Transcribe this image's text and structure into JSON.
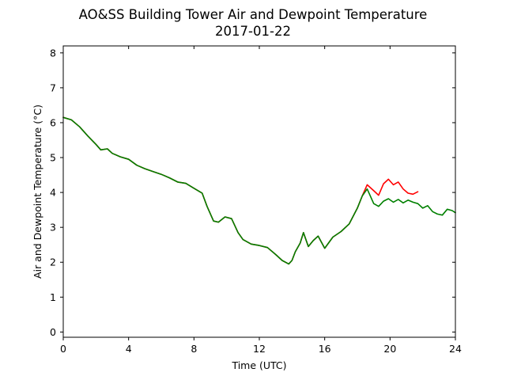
{
  "chart_data": {
    "type": "line",
    "title": "AO&SS Building Tower Air and Dewpoint Temperature",
    "subtitle": "2017-01-22",
    "xlabel": "Time (UTC)",
    "ylabel": "Air and Dewpoint Temperature (°C)",
    "xlim": [
      0,
      24
    ],
    "ylim": [
      -0.15,
      8.2
    ],
    "xticks": [
      0,
      4,
      8,
      12,
      16,
      20,
      24
    ],
    "yticks": [
      0,
      1,
      2,
      3,
      4,
      5,
      6,
      7,
      8
    ],
    "grid": false,
    "series": [
      {
        "color": "#ff0000",
        "x": [
          0,
          0.5,
          1.0,
          1.5,
          2.0,
          2.3,
          2.7,
          3.0,
          3.5,
          4.0,
          4.5,
          5.0,
          5.5,
          6.0,
          6.5,
          7.0,
          7.5,
          8.0,
          8.5,
          8.8,
          9.2,
          9.5,
          9.9,
          10.3,
          10.7,
          11.0,
          11.5,
          12.0,
          12.5,
          13.0,
          13.4,
          13.8,
          14.0,
          14.2,
          14.5,
          14.7,
          15.0,
          15.3,
          15.6,
          16.0,
          16.5,
          17.0,
          17.5,
          18.0,
          18.3,
          18.6,
          19.0,
          19.3,
          19.6,
          19.9,
          20.2,
          20.5,
          20.8,
          21.1,
          21.4,
          21.7
        ],
        "y": [
          6.15,
          6.08,
          5.88,
          5.62,
          5.38,
          5.22,
          5.25,
          5.12,
          5.02,
          4.95,
          4.78,
          4.68,
          4.6,
          4.52,
          4.42,
          4.3,
          4.26,
          4.12,
          3.98,
          3.6,
          3.18,
          3.15,
          3.3,
          3.25,
          2.85,
          2.65,
          2.52,
          2.48,
          2.42,
          2.22,
          2.05,
          1.95,
          2.05,
          2.3,
          2.55,
          2.85,
          2.45,
          2.62,
          2.75,
          2.4,
          2.72,
          2.88,
          3.1,
          3.55,
          3.9,
          4.22,
          4.05,
          3.92,
          4.25,
          4.38,
          4.22,
          4.3,
          4.1,
          3.98,
          3.95,
          4.02
        ]
      },
      {
        "color": "#008000",
        "x": [
          0,
          0.5,
          1.0,
          1.5,
          2.0,
          2.3,
          2.7,
          3.0,
          3.5,
          4.0,
          4.5,
          5.0,
          5.5,
          6.0,
          6.5,
          7.0,
          7.5,
          8.0,
          8.5,
          8.8,
          9.2,
          9.5,
          9.9,
          10.3,
          10.7,
          11.0,
          11.5,
          12.0,
          12.5,
          13.0,
          13.4,
          13.8,
          14.0,
          14.2,
          14.5,
          14.7,
          15.0,
          15.3,
          15.6,
          16.0,
          16.5,
          17.0,
          17.5,
          18.0,
          18.3,
          18.6,
          19.0,
          19.3,
          19.6,
          19.9,
          20.2,
          20.5,
          20.8,
          21.1,
          21.4,
          21.7,
          22.0,
          22.3,
          22.6,
          22.9,
          23.2,
          23.5,
          23.8,
          24.0
        ],
        "y": [
          6.15,
          6.08,
          5.88,
          5.62,
          5.38,
          5.22,
          5.25,
          5.12,
          5.02,
          4.95,
          4.78,
          4.68,
          4.6,
          4.52,
          4.42,
          4.3,
          4.26,
          4.12,
          3.98,
          3.6,
          3.18,
          3.15,
          3.3,
          3.25,
          2.85,
          2.65,
          2.52,
          2.48,
          2.42,
          2.22,
          2.05,
          1.95,
          2.05,
          2.3,
          2.55,
          2.85,
          2.45,
          2.62,
          2.75,
          2.4,
          2.72,
          2.88,
          3.1,
          3.55,
          3.9,
          4.1,
          3.68,
          3.6,
          3.75,
          3.82,
          3.72,
          3.8,
          3.7,
          3.78,
          3.72,
          3.68,
          3.55,
          3.62,
          3.45,
          3.38,
          3.35,
          3.52,
          3.48,
          3.42
        ]
      }
    ]
  }
}
